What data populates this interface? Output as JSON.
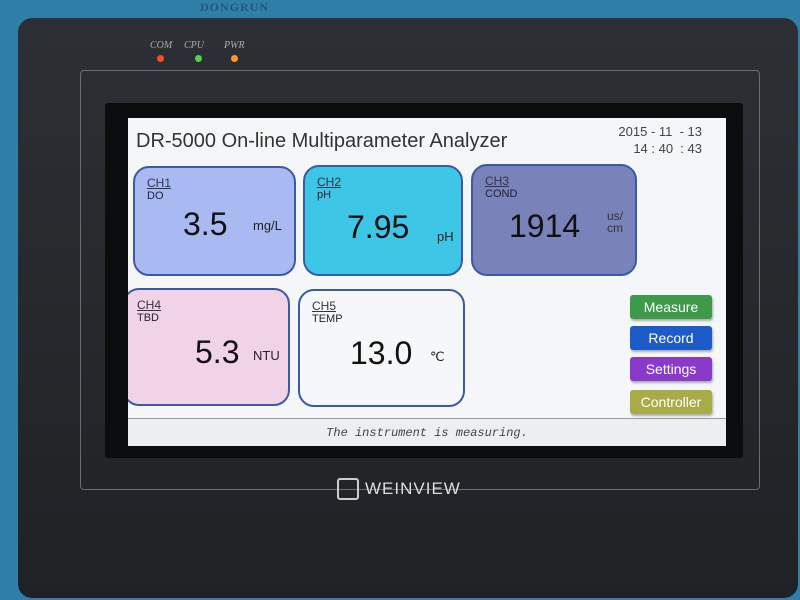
{
  "device": {
    "brand_text": "DONGRUN",
    "leds": [
      {
        "label": "COM",
        "color": "#ff4a2a"
      },
      {
        "label": "CPU",
        "color": "#5ad040"
      },
      {
        "label": "PWR",
        "color": "#ff9a20"
      }
    ],
    "logo": "WEINVIEW"
  },
  "header": {
    "title": "DR-5000 On-line Multiparameter Analyzer",
    "date": "2015 - 11  - 13",
    "time": "14 : 40  : 43"
  },
  "channels": [
    {
      "ch": "CH1",
      "name": "DO",
      "value": "3.5",
      "unit": "mg/L",
      "color": "#a9b9f2"
    },
    {
      "ch": "CH2",
      "name": "pH",
      "value": "7.95",
      "unit": "pH",
      "color": "#3ec6e6"
    },
    {
      "ch": "CH3",
      "name": "COND",
      "value": "1914",
      "unit": "us/\ncm",
      "color": "#7a82ba"
    },
    {
      "ch": "CH4",
      "name": "TBD",
      "value": "5.3",
      "unit": "NTU",
      "color": "#f1d3e8"
    },
    {
      "ch": "CH5",
      "name": "TEMP",
      "value": "13.0",
      "unit": "℃",
      "color": "#f6f7f8"
    }
  ],
  "buttons": [
    {
      "label": "Measure",
      "color": "#3d9a48"
    },
    {
      "label": "Record",
      "color": "#1d5cc8"
    },
    {
      "label": "Settings",
      "color": "#8a3ac8"
    },
    {
      "label": "Controller",
      "color": "#a8ac48"
    }
  ],
  "status": "The instrument is measuring."
}
